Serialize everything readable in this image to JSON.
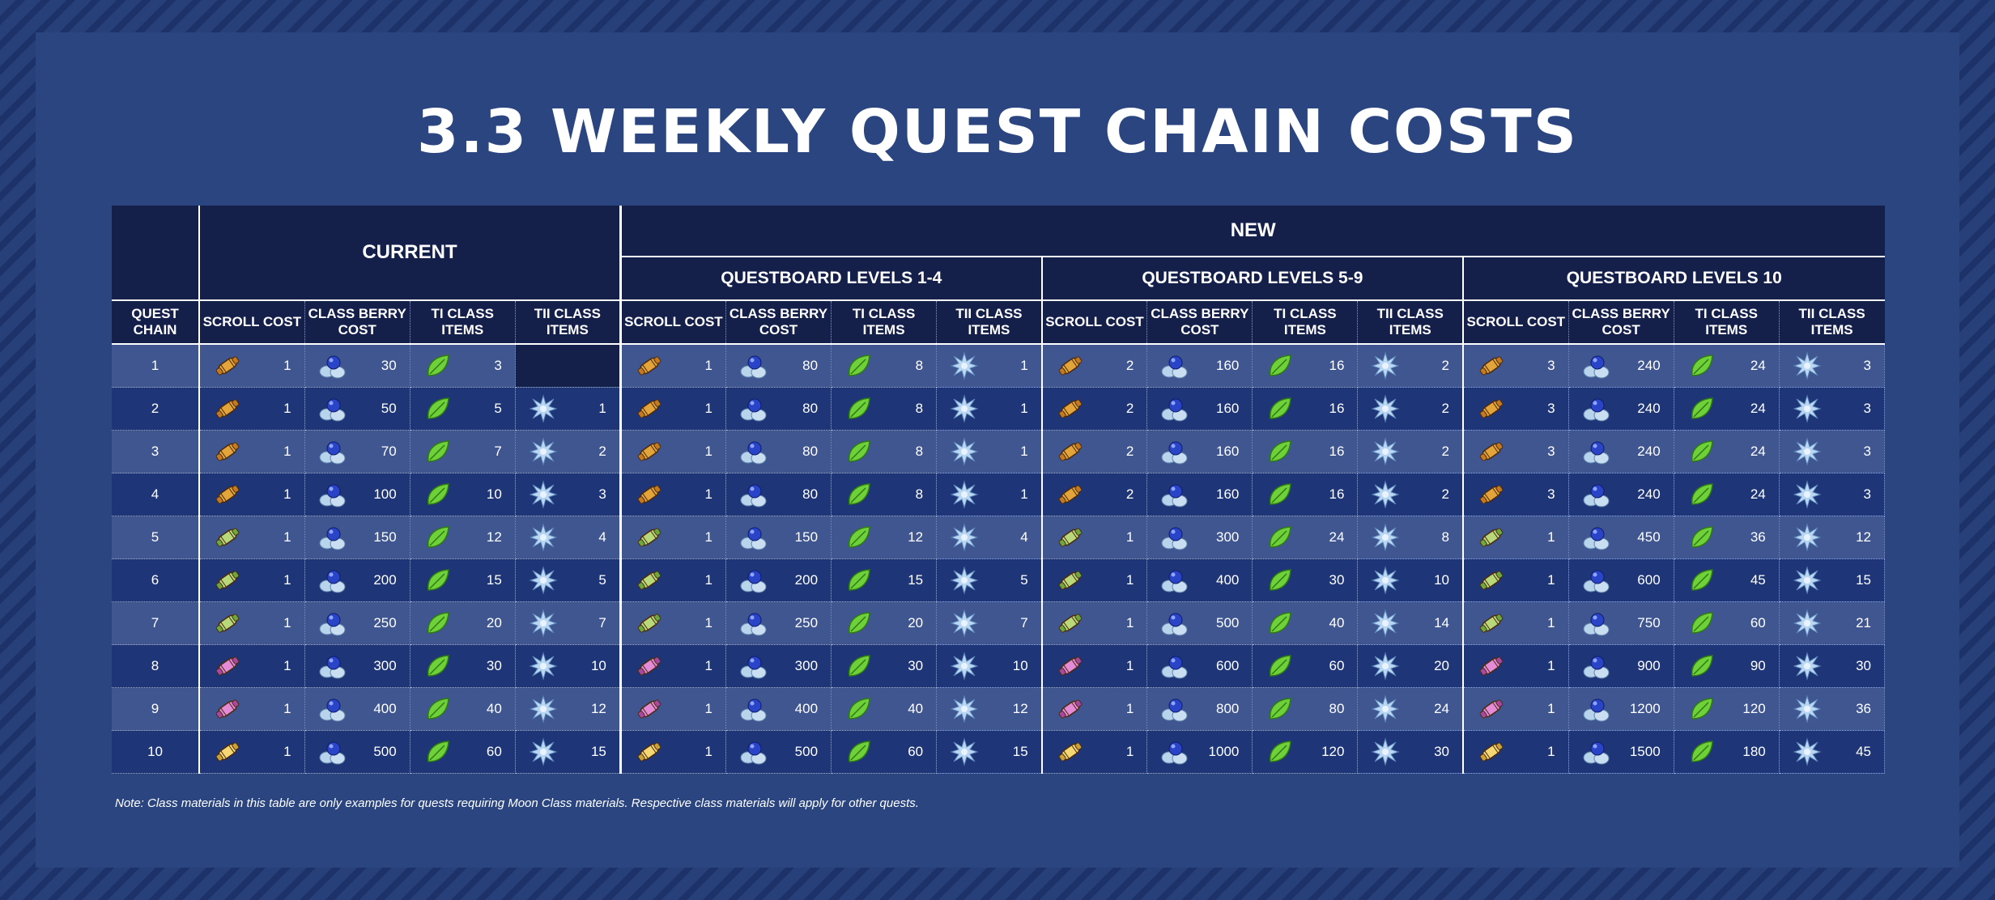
{
  "title": "3.3 WEEKLY QUEST CHAIN COSTS",
  "headers": {
    "current": "CURRENT",
    "new": "NEW",
    "groups": [
      "QUESTBOARD LEVELS 1-4",
      "QUESTBOARD LEVELS 5-9",
      "QUESTBOARD LEVELS 10"
    ],
    "quest_chain": "QUEST CHAIN",
    "columns": [
      "SCROLL COST",
      "CLASS BERRY COST",
      "TI CLASS ITEMS",
      "TII CLASS ITEMS"
    ]
  },
  "icons": {
    "scroll_gold": "gold-scroll-icon",
    "scroll_green": "green-scroll-icon",
    "scroll_pink": "pink-scroll-icon",
    "scroll_yellow": "yellow-scroll-icon",
    "berry": "moon-berry-icon",
    "ti": "green-leaf-icon",
    "tii": "ice-star-icon"
  },
  "colors": {
    "header_bg": "#141f4a",
    "row_light": "#3f5690",
    "row_dark": "#1e3677",
    "panel": "#2a4580"
  },
  "rows": [
    {
      "chain": "1",
      "scroll": "gold",
      "current": [
        "1",
        "30",
        "3",
        ""
      ],
      "g1": [
        "1",
        "80",
        "8",
        "1"
      ],
      "g2": [
        "2",
        "160",
        "16",
        "2"
      ],
      "g3": [
        "3",
        "240",
        "24",
        "3"
      ]
    },
    {
      "chain": "2",
      "scroll": "gold",
      "current": [
        "1",
        "50",
        "5",
        "1"
      ],
      "g1": [
        "1",
        "80",
        "8",
        "1"
      ],
      "g2": [
        "2",
        "160",
        "16",
        "2"
      ],
      "g3": [
        "3",
        "240",
        "24",
        "3"
      ]
    },
    {
      "chain": "3",
      "scroll": "gold",
      "current": [
        "1",
        "70",
        "7",
        "2"
      ],
      "g1": [
        "1",
        "80",
        "8",
        "1"
      ],
      "g2": [
        "2",
        "160",
        "16",
        "2"
      ],
      "g3": [
        "3",
        "240",
        "24",
        "3"
      ]
    },
    {
      "chain": "4",
      "scroll": "gold",
      "current": [
        "1",
        "100",
        "10",
        "3"
      ],
      "g1": [
        "1",
        "80",
        "8",
        "1"
      ],
      "g2": [
        "2",
        "160",
        "16",
        "2"
      ],
      "g3": [
        "3",
        "240",
        "24",
        "3"
      ]
    },
    {
      "chain": "5",
      "scroll": "green",
      "current": [
        "1",
        "150",
        "12",
        "4"
      ],
      "g1": [
        "1",
        "150",
        "12",
        "4"
      ],
      "g2": [
        "1",
        "300",
        "24",
        "8"
      ],
      "g3": [
        "1",
        "450",
        "36",
        "12"
      ]
    },
    {
      "chain": "6",
      "scroll": "green",
      "current": [
        "1",
        "200",
        "15",
        "5"
      ],
      "g1": [
        "1",
        "200",
        "15",
        "5"
      ],
      "g2": [
        "1",
        "400",
        "30",
        "10"
      ],
      "g3": [
        "1",
        "600",
        "45",
        "15"
      ]
    },
    {
      "chain": "7",
      "scroll": "green",
      "current": [
        "1",
        "250",
        "20",
        "7"
      ],
      "g1": [
        "1",
        "250",
        "20",
        "7"
      ],
      "g2": [
        "1",
        "500",
        "40",
        "14"
      ],
      "g3": [
        "1",
        "750",
        "60",
        "21"
      ]
    },
    {
      "chain": "8",
      "scroll": "pink",
      "current": [
        "1",
        "300",
        "30",
        "10"
      ],
      "g1": [
        "1",
        "300",
        "30",
        "10"
      ],
      "g2": [
        "1",
        "600",
        "60",
        "20"
      ],
      "g3": [
        "1",
        "900",
        "90",
        "30"
      ]
    },
    {
      "chain": "9",
      "scroll": "pink",
      "current": [
        "1",
        "400",
        "40",
        "12"
      ],
      "g1": [
        "1",
        "400",
        "40",
        "12"
      ],
      "g2": [
        "1",
        "800",
        "80",
        "24"
      ],
      "g3": [
        "1",
        "1200",
        "120",
        "36"
      ]
    },
    {
      "chain": "10",
      "scroll": "yellow",
      "current": [
        "1",
        "500",
        "60",
        "15"
      ],
      "g1": [
        "1",
        "500",
        "60",
        "15"
      ],
      "g2": [
        "1",
        "1000",
        "120",
        "30"
      ],
      "g3": [
        "1",
        "1500",
        "180",
        "45"
      ]
    }
  ],
  "note": "Note: Class materials in this table are only examples for quests requiring Moon Class materials. Respective class materials will apply for other quests."
}
